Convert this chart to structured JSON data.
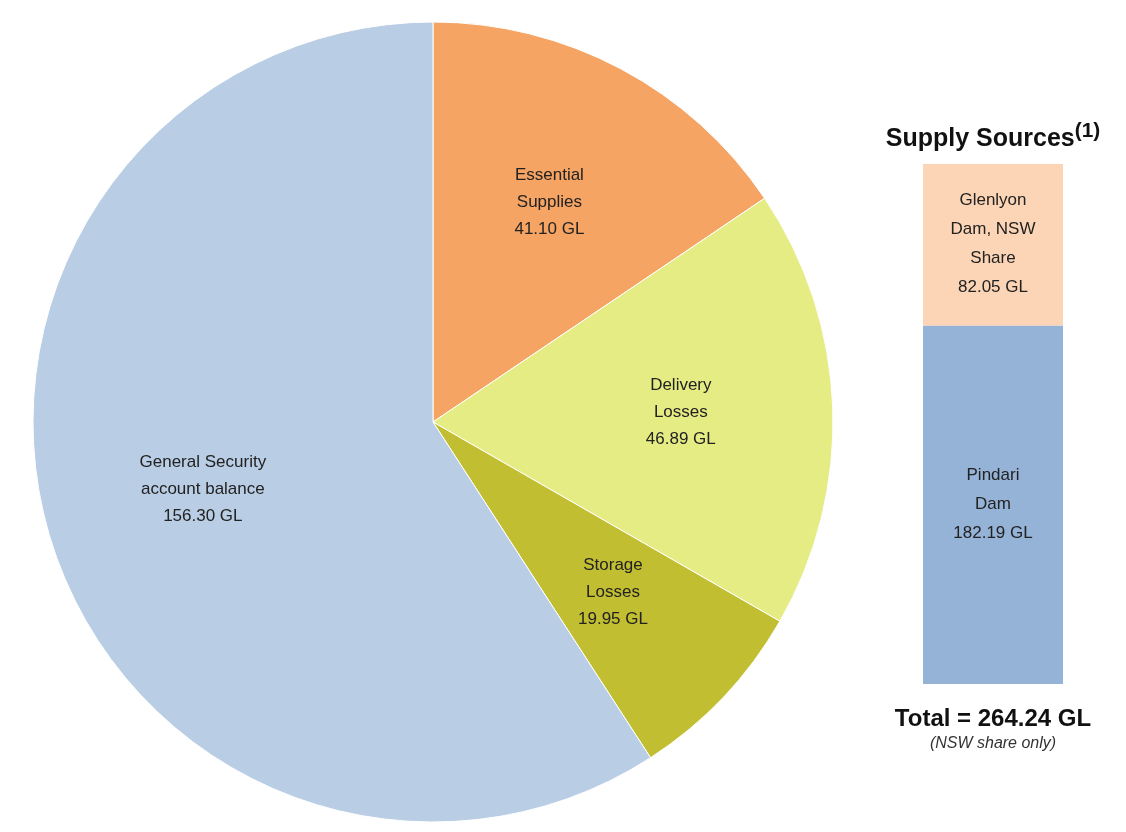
{
  "chart_data": [
    {
      "type": "pie",
      "categories": [
        "Essential Supplies",
        "Delivery Losses",
        "Storage Losses",
        "General Security account balance"
      ],
      "values": [
        41.1,
        46.89,
        19.95,
        156.3
      ],
      "colors": [
        "#f5a463",
        "#e6ec84",
        "#c2be32",
        "#b9cde4"
      ],
      "value_labels": [
        "41.10 GL",
        "46.89 GL",
        "19.95 GL",
        "156.30 GL"
      ]
    },
    {
      "type": "bar",
      "stacked": true,
      "title": "Supply Sources$^{(1)}$",
      "categories": [
        null
      ],
      "series": [
        {
          "name": "Pindari Dam",
          "color": "#95b3d7",
          "values": [
            182.19
          ],
          "value_labels": [
            "182.19 GL"
          ]
        },
        {
          "name": "Glenlyon Dam, NSW Share",
          "color": "#fbd5b5",
          "values": [
            82.05
          ],
          "value_labels": [
            "82.05 GL"
          ]
        }
      ],
      "annotations": [
        "Total = 264.24 GL",
        "(NSW share only)"
      ]
    }
  ]
}
